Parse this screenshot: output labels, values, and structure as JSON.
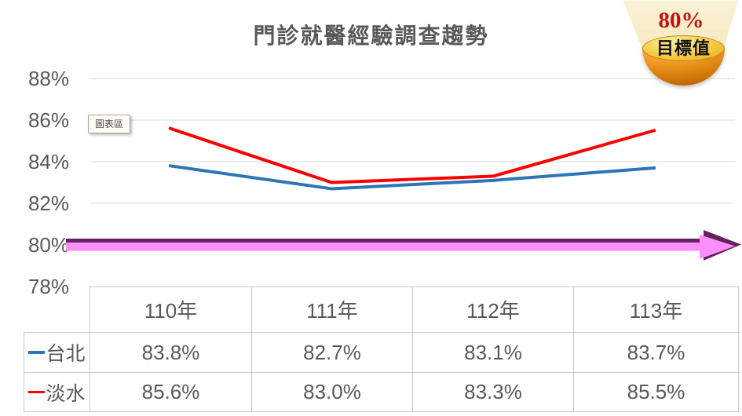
{
  "title": "門診就醫經驗調查趨勢",
  "tooltip": "圖表區",
  "badge": {
    "percent": "80%",
    "label": "目標值"
  },
  "chart_data": {
    "type": "line",
    "title": "門診就醫經驗調查趨勢",
    "categories": [
      "110年",
      "111年",
      "112年",
      "113年"
    ],
    "series": [
      {
        "name": "台北",
        "color": "#2E75B6",
        "values": [
          83.8,
          82.7,
          83.1,
          83.7
        ]
      },
      {
        "name": "淡水",
        "color": "#FE0000",
        "values": [
          85.6,
          83.0,
          83.3,
          85.5
        ]
      }
    ],
    "target_line": {
      "value": 80,
      "label": "80% 目標值",
      "dark_color": "#662260",
      "light_color": "#FA8EFA"
    },
    "ylim": [
      78,
      88
    ],
    "yticks": [
      {
        "label": "88%",
        "value": 88,
        "grid": true
      },
      {
        "label": "86%",
        "value": 86,
        "grid": true
      },
      {
        "label": "84%",
        "value": 84,
        "grid": true
      },
      {
        "label": "82%",
        "value": 82,
        "grid": true
      },
      {
        "label": "80%",
        "value": 80,
        "grid": false
      },
      {
        "label": "78%",
        "value": 78,
        "grid": false
      }
    ],
    "grid": true,
    "grid_color": "#D9D9D9",
    "text_color": "#595959",
    "legend_position": "table-left"
  },
  "table": {
    "col_headers": [
      "110年",
      "111年",
      "112年",
      "113年"
    ],
    "rows": [
      {
        "name": "台北",
        "marker_color": "#2E75B6",
        "values": [
          "83.8%",
          "82.7%",
          "83.1%",
          "83.7%"
        ]
      },
      {
        "name": "淡水",
        "marker_color": "#FE0000",
        "values": [
          "85.6%",
          "83.0%",
          "83.3%",
          "85.5%"
        ]
      }
    ]
  }
}
